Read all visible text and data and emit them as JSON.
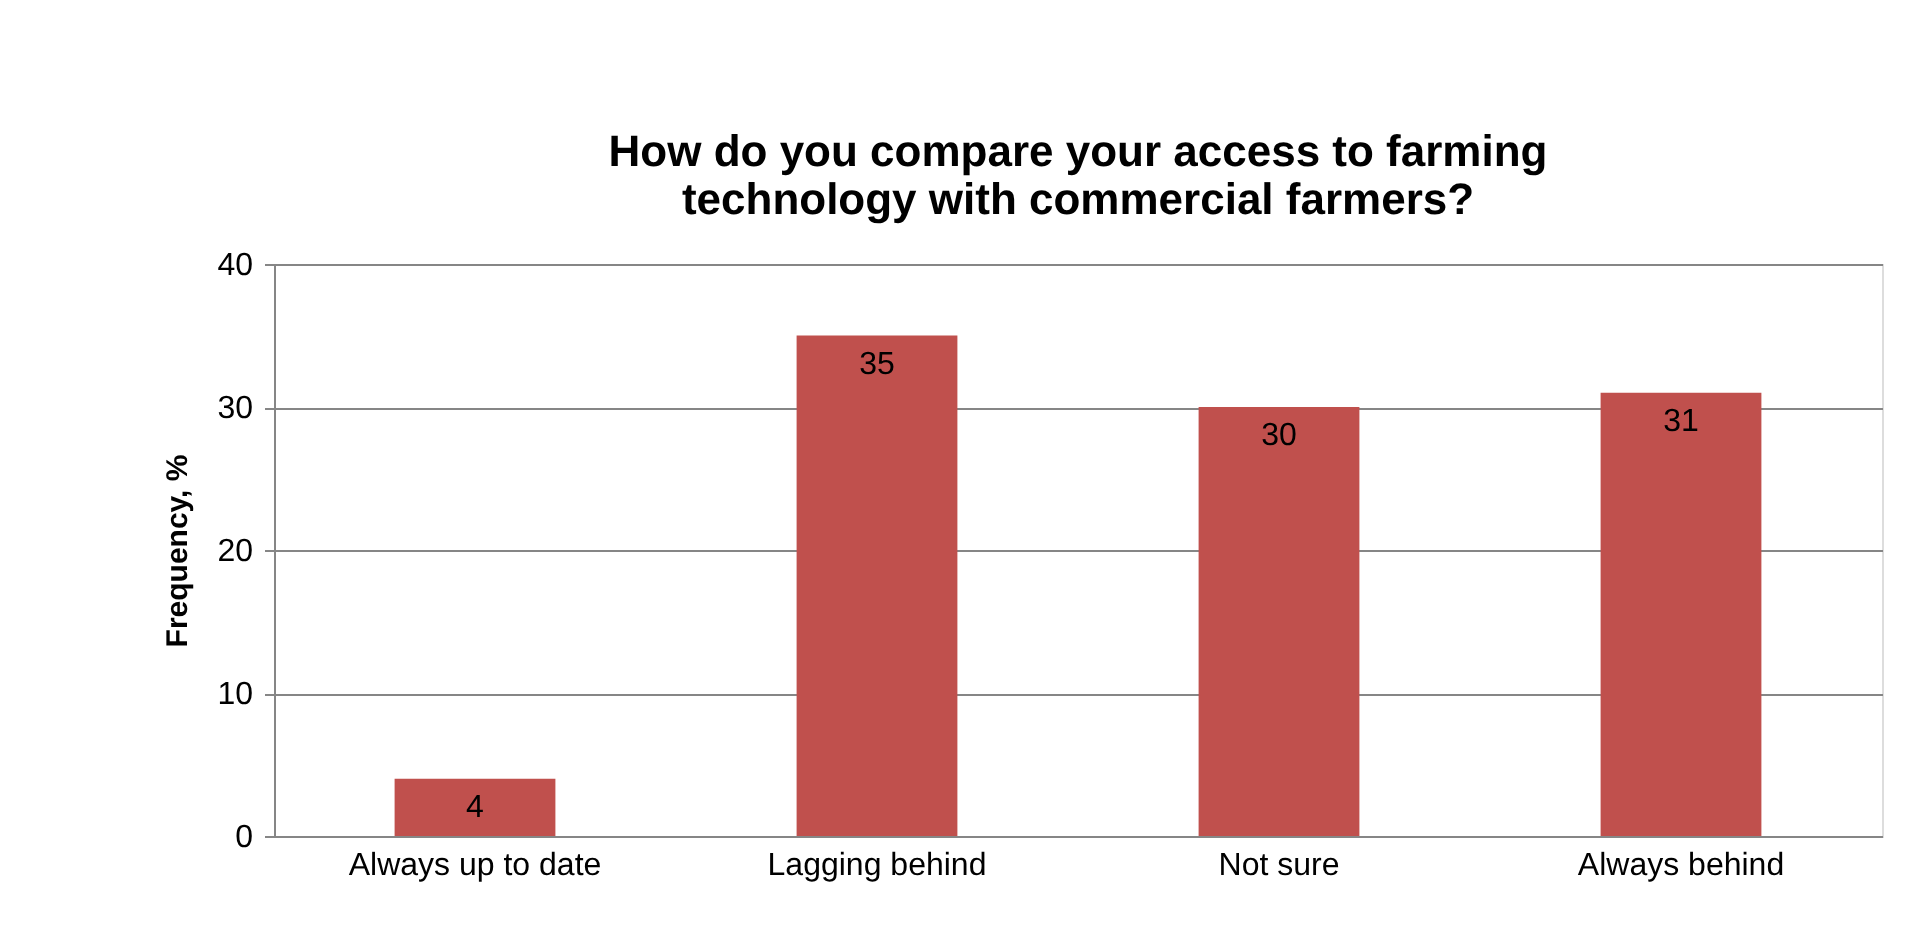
{
  "chart_data": {
    "type": "bar",
    "title": "How do you compare your access to farming\ntechnology with commercial farmers?",
    "ylabel": "Frequency, %",
    "categories": [
      "Always up to date",
      "Lagging behind",
      "Not sure",
      "Always behind"
    ],
    "values": [
      4,
      35,
      30,
      31
    ],
    "color": "#c0504d",
    "ylim": [
      0,
      40
    ],
    "yticks": [
      0,
      10,
      20,
      30,
      40
    ],
    "grid": "y",
    "data_labels": true
  }
}
